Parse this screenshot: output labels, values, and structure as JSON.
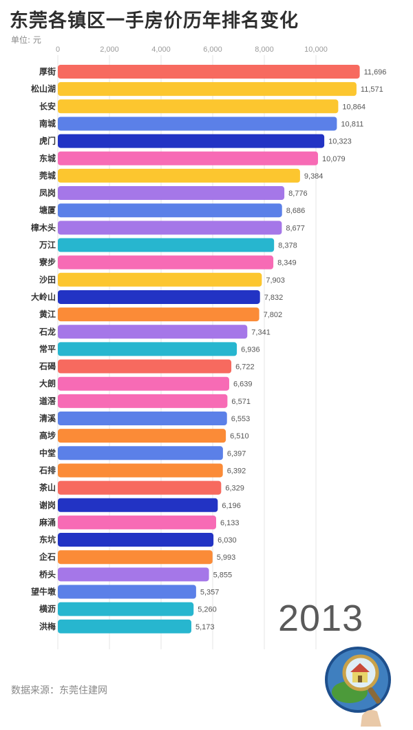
{
  "title": "东莞各镇区一手房价历年排名变化",
  "unit": "单位: 元",
  "year": "2013",
  "source": "数据来源：东莞住建网",
  "chart_data": {
    "type": "bar",
    "orientation": "horizontal",
    "title": "东莞各镇区一手房价历年排名变化",
    "xlim": [
      0,
      11000
    ],
    "x_ticks": [
      "0",
      "2,000",
      "4,000",
      "6,000",
      "8,000",
      "10,000"
    ],
    "grid": true,
    "categories": [
      "厚街",
      "松山湖",
      "长安",
      "南城",
      "虎门",
      "东城",
      "莞城",
      "凤岗",
      "塘厦",
      "樟木头",
      "万江",
      "寮步",
      "沙田",
      "大岭山",
      "黄江",
      "石龙",
      "常平",
      "石碣",
      "大朗",
      "道滘",
      "清溪",
      "高埗",
      "中堂",
      "石排",
      "茶山",
      "谢岗",
      "麻涌",
      "东坑",
      "企石",
      "桥头",
      "望牛墩",
      "横沥",
      "洪梅"
    ],
    "values": [
      11696,
      11571,
      10864,
      10811,
      10323,
      10079,
      9384,
      8776,
      8686,
      8677,
      8378,
      8349,
      7903,
      7832,
      7802,
      7341,
      6936,
      6722,
      6639,
      6571,
      6553,
      6510,
      6397,
      6392,
      6329,
      6196,
      6133,
      6030,
      5993,
      5855,
      5357,
      5260,
      5173
    ],
    "value_labels": [
      "11,696",
      "11,571",
      "10,864",
      "10,811",
      "10,323",
      "10,079",
      "9,384",
      "8,776",
      "8,686",
      "8,677",
      "8,378",
      "8,349",
      "7,903",
      "7,832",
      "7,802",
      "7,341",
      "6,936",
      "6,722",
      "6,639",
      "6,571",
      "6,553",
      "6,510",
      "6,397",
      "6,392",
      "6,329",
      "6,196",
      "6,133",
      "6,030",
      "5,993",
      "5,855",
      "5,357",
      "5,260",
      "5,173"
    ],
    "colors": [
      "#f76a5f",
      "#fcc62f",
      "#fcc62f",
      "#5b80e8",
      "#2233c4",
      "#f76bb5",
      "#fcc62f",
      "#a577e8",
      "#5b80e8",
      "#a577e8",
      "#27b6cf",
      "#f76bb5",
      "#fcc62f",
      "#2233c4",
      "#fb8b37",
      "#a577e8",
      "#27b6cf",
      "#f76a5f",
      "#f76bb5",
      "#f76bb5",
      "#5b80e8",
      "#fb8b37",
      "#5b80e8",
      "#fb8b37",
      "#f76a5f",
      "#2233c4",
      "#f76bb5",
      "#2233c4",
      "#fb8b37",
      "#a577e8",
      "#5b80e8",
      "#27b6cf",
      "#27b6cf"
    ]
  }
}
